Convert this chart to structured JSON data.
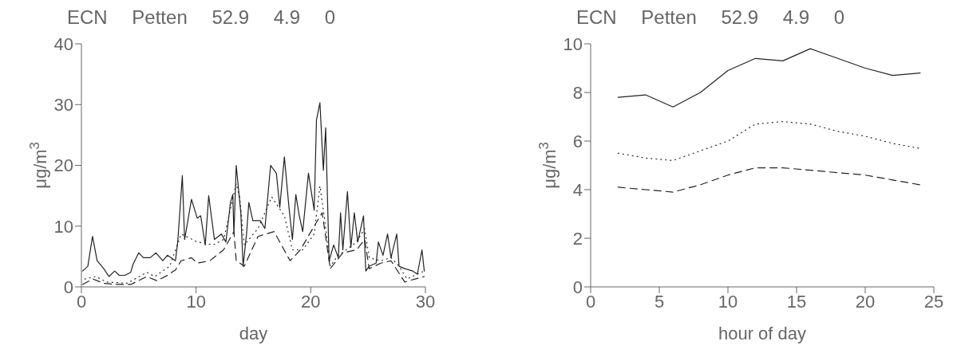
{
  "chart_data": [
    {
      "type": "line",
      "title": "ECN Petten 52.9 4.9 0",
      "xlabel": "day",
      "ylabel": "μg/m$^{3}$",
      "xlim": [
        0,
        30
      ],
      "xticks": [
        0,
        10,
        20,
        30
      ],
      "ylim": [
        0,
        40
      ],
      "yticks": [
        0,
        10,
        20,
        30,
        40
      ],
      "series": [
        {
          "color": "#222222",
          "line_style": "solid",
          "x": [
            0.1,
            0.56,
            0.97,
            1.37,
            1.95,
            2.4,
            2.9,
            3.3,
            3.8,
            4.3,
            4.5,
            5.0,
            5.4,
            6.0,
            6.5,
            7.1,
            7.5,
            8.2,
            8.4,
            8.8,
            9.0,
            9.6,
            10.1,
            10.4,
            10.8,
            11.1,
            11.6,
            12.2,
            12.6,
            13.0,
            13.2,
            13.3,
            13.5,
            13.9,
            14.1,
            14.4,
            14.6,
            14.95,
            15.6,
            16.0,
            16.5,
            17.0,
            17.3,
            17.7,
            18.1,
            18.4,
            18.7,
            19.0,
            19.3,
            19.8,
            20.3,
            20.5,
            20.8,
            21.1,
            21.3,
            21.6,
            22.0,
            22.4,
            22.6,
            22.8,
            23.2,
            23.5,
            23.8,
            24.1,
            24.6,
            24.8,
            25.1,
            25.7,
            25.9,
            26.3,
            26.7,
            27.0,
            27.5,
            27.7,
            28.2,
            28.9,
            29.3,
            29.7,
            29.9
          ],
          "values": [
            2.6,
            3.4,
            8.3,
            4.3,
            3.0,
            1.7,
            2.6,
            1.9,
            1.9,
            2.4,
            3.7,
            5.6,
            4.8,
            4.8,
            5.6,
            4.3,
            5.2,
            4.3,
            7.4,
            18.3,
            7.8,
            14.4,
            11.3,
            11.7,
            6.9,
            15.0,
            7.8,
            8.7,
            7.4,
            13.9,
            15.2,
            8.7,
            20.0,
            12.2,
            3.4,
            8.7,
            13.9,
            10.9,
            10.9,
            9.6,
            20.0,
            18.7,
            13.1,
            21.4,
            13.1,
            7.8,
            15.2,
            11.7,
            9.1,
            18.7,
            12.6,
            27.5,
            30.3,
            19.2,
            26.2,
            4.3,
            6.9,
            4.8,
            12.2,
            6.1,
            15.7,
            6.5,
            12.2,
            7.4,
            11.7,
            2.6,
            3.4,
            3.9,
            7.4,
            5.2,
            8.7,
            4.8,
            8.7,
            3.4,
            3.0,
            2.6,
            2.1,
            6.1,
            2.6
          ]
        },
        {
          "color": "#222222",
          "line_style": "dotted",
          "x": [
            0.3,
            1.25,
            2.2,
            4.0,
            5.7,
            6.4,
            7.7,
            8.7,
            10.1,
            11.5,
            12.4,
            13.5,
            13.8,
            14.2,
            15.4,
            16.6,
            17.7,
            18.4,
            19.3,
            20.3,
            20.8,
            21.2,
            21.7,
            22.4,
            23.1,
            24.0,
            24.7,
            25.1,
            26.1,
            27.0,
            27.7,
            28.4,
            29.3,
            29.9
          ],
          "values": [
            1.3,
            1.7,
            0.8,
            0.6,
            2.4,
            1.7,
            3.4,
            8.7,
            7.4,
            6.9,
            7.8,
            17.0,
            14.8,
            6.9,
            9.6,
            14.8,
            11.7,
            6.1,
            6.1,
            8.7,
            16.6,
            11.3,
            3.4,
            5.2,
            6.1,
            7.4,
            9.6,
            4.8,
            4.3,
            4.8,
            3.4,
            1.3,
            2.1,
            2.6
          ]
        },
        {
          "color": "#222222",
          "line_style": "dashed",
          "x": [
            0.1,
            1.0,
            1.9,
            3.1,
            4.3,
            5.7,
            6.6,
            7.5,
            8.2,
            8.7,
            9.6,
            10.1,
            11.2,
            12.4,
            13.3,
            13.5,
            14.2,
            15.4,
            16.8,
            18.2,
            19.1,
            20.3,
            21.0,
            21.7,
            22.8,
            24.0,
            24.7,
            25.1,
            26.1,
            27.0,
            28.2,
            29.1,
            29.9
          ],
          "values": [
            0.4,
            1.3,
            0.6,
            0.4,
            0.4,
            1.7,
            1.0,
            1.9,
            2.8,
            4.3,
            4.8,
            3.9,
            4.3,
            6.1,
            9.1,
            4.3,
            3.4,
            8.3,
            9.1,
            4.3,
            6.1,
            10.0,
            12.2,
            3.0,
            5.6,
            6.1,
            7.8,
            3.0,
            3.9,
            4.3,
            0.8,
            1.3,
            1.7
          ]
        }
      ]
    },
    {
      "type": "line",
      "title": "ECN Petten 52.9 4.9 0",
      "xlabel": "hour of day",
      "ylabel": "μg/m$^{3}$",
      "xlim": [
        0,
        25
      ],
      "xticks": [
        0,
        5,
        10,
        15,
        20,
        25
      ],
      "ylim": [
        0,
        10
      ],
      "yticks": [
        0,
        2,
        4,
        6,
        8,
        10
      ],
      "series": [
        {
          "color": "#222222",
          "line_style": "solid",
          "x": [
            2,
            4,
            6,
            8,
            10,
            12,
            14,
            16,
            18,
            20,
            22,
            24
          ],
          "values": [
            7.8,
            7.9,
            7.4,
            8.0,
            8.9,
            9.4,
            9.3,
            9.8,
            9.4,
            9.0,
            8.7,
            8.8
          ]
        },
        {
          "color": "#222222",
          "line_style": "dotted",
          "x": [
            2,
            4,
            6,
            8,
            10,
            12,
            14,
            16,
            18,
            20,
            22,
            24
          ],
          "values": [
            5.5,
            5.3,
            5.2,
            5.6,
            6.0,
            6.7,
            6.8,
            6.7,
            6.4,
            6.2,
            5.9,
            5.7
          ]
        },
        {
          "color": "#222222",
          "line_style": "dashed",
          "x": [
            2,
            4,
            6,
            8,
            10,
            12,
            14,
            16,
            18,
            20,
            22,
            24
          ],
          "values": [
            4.1,
            4.0,
            3.9,
            4.2,
            4.6,
            4.9,
            4.9,
            4.8,
            4.7,
            4.6,
            4.4,
            4.2
          ]
        }
      ]
    }
  ]
}
